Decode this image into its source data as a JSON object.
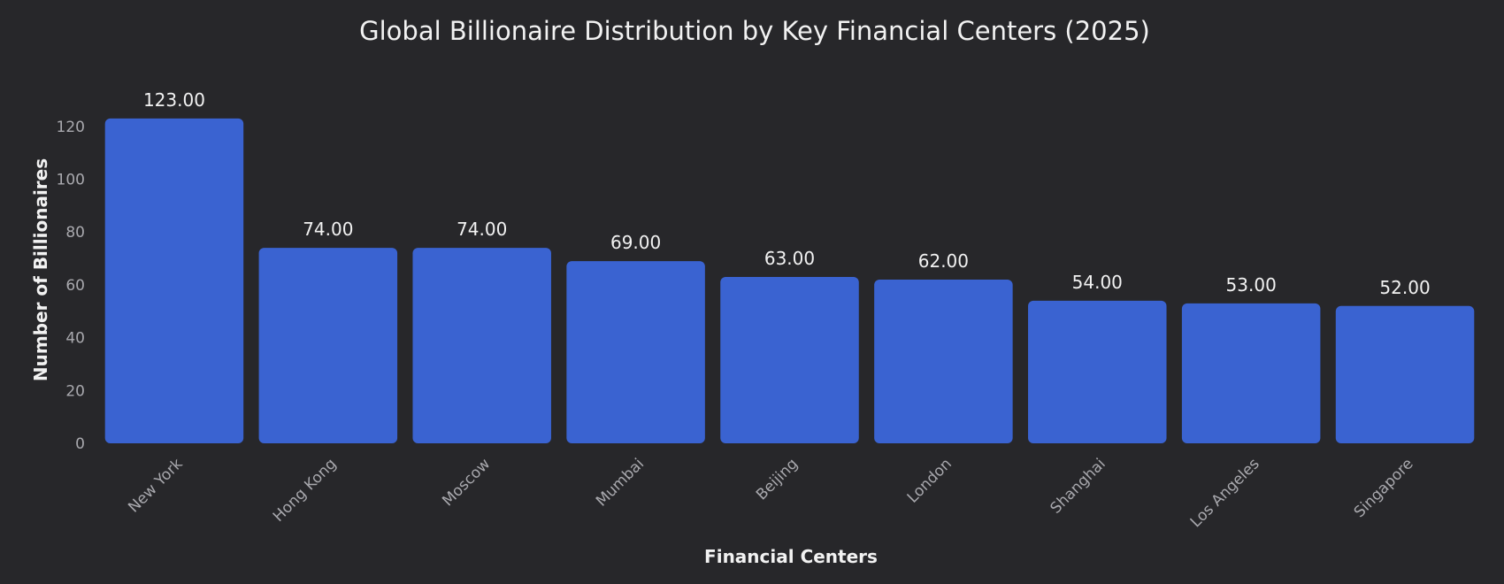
{
  "chart_data": {
    "type": "bar",
    "title": "Global Billionaire Distribution by Key Financial Centers (2025)",
    "xlabel": "Financial Centers",
    "ylabel": "Number of Billionaires",
    "categories": [
      "New York",
      "Hong Kong",
      "Moscow",
      "Mumbai",
      "Beijing",
      "London",
      "Shanghai",
      "Los Angeles",
      "Singapore"
    ],
    "values": [
      123,
      74,
      74,
      69,
      63,
      62,
      54,
      53,
      52
    ],
    "data_labels": [
      "123.00",
      "74.00",
      "74.00",
      "69.00",
      "63.00",
      "62.00",
      "54.00",
      "53.00",
      "52.00"
    ],
    "yticks": [
      0,
      20,
      40,
      60,
      80,
      100,
      120
    ],
    "ylim": [
      0,
      129
    ],
    "grid": false,
    "legend": "none",
    "colors": {
      "background": "#27272a",
      "bar": "#3a63d1",
      "text": "#f2f2f2",
      "tick_text": "#a9a9ae"
    }
  }
}
